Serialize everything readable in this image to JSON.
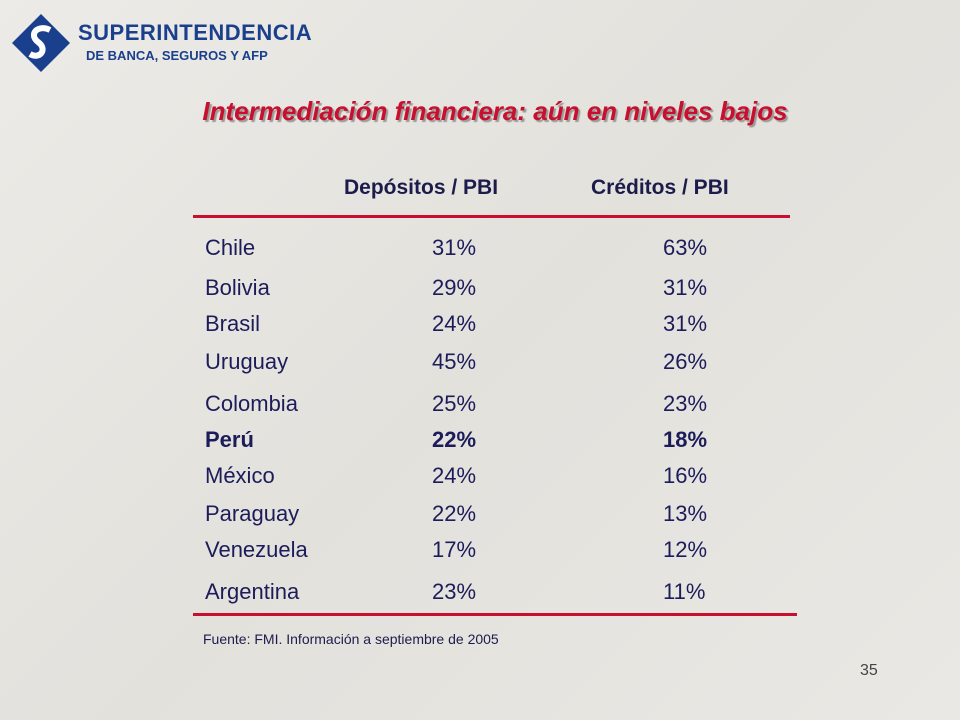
{
  "header": {
    "logo_title": "SUPERINTENDENCIA",
    "logo_subtitle": "DE BANCA, SEGUROS Y AFP"
  },
  "title": "Intermediación financiera: aún en niveles bajos",
  "table": {
    "columns": [
      "Depósitos / PBI",
      "Créditos / PBI"
    ],
    "rows": [
      [
        "Chile",
        "31%",
        "63%"
      ],
      [
        "Bolivia",
        "29%",
        "31%"
      ],
      [
        "Brasil",
        "24%",
        "31%"
      ],
      [
        "Uruguay",
        "45%",
        "26%"
      ],
      [
        "Colombia",
        "25%",
        "23%"
      ],
      [
        "Perú",
        "22%",
        "18%"
      ],
      [
        "México",
        "24%",
        "16%"
      ],
      [
        "Paraguay",
        "22%",
        "13%"
      ],
      [
        "Venezuela",
        "17%",
        "12%"
      ],
      [
        "Argentina",
        "23%",
        "11%"
      ]
    ],
    "highlight_row": 5
  },
  "footnote": "Fuente: FMI. Información a septiembre de 2005",
  "page_number": "35"
}
